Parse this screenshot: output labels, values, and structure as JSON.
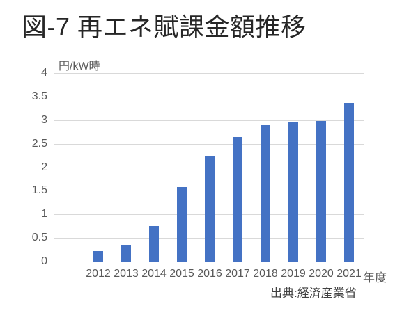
{
  "title": "図-7 再エネ賦課金額推移",
  "source": "出典:経済産業省",
  "chart_data": {
    "type": "bar",
    "title": "図-7 再エネ賦課金額推移",
    "unit_label": "円/kW時",
    "xlabel": "年度",
    "ylabel": "円/kW時",
    "categories": [
      "2012",
      "2013",
      "2014",
      "2015",
      "2016",
      "2017",
      "2018",
      "2019",
      "2020",
      "2021"
    ],
    "values": [
      0.22,
      0.35,
      0.75,
      1.58,
      2.25,
      2.64,
      2.9,
      2.95,
      2.98,
      3.36
    ],
    "ylim": [
      0,
      4
    ],
    "yticks": [
      0,
      0.5,
      1,
      1.5,
      2,
      2.5,
      3,
      3.5,
      4
    ],
    "grid": true,
    "legend": false,
    "bar_color": "#4472C4",
    "gridline_color": "#D9D9D9",
    "tick_text_color": "#595959",
    "annotation": "出典:経済産業省"
  }
}
